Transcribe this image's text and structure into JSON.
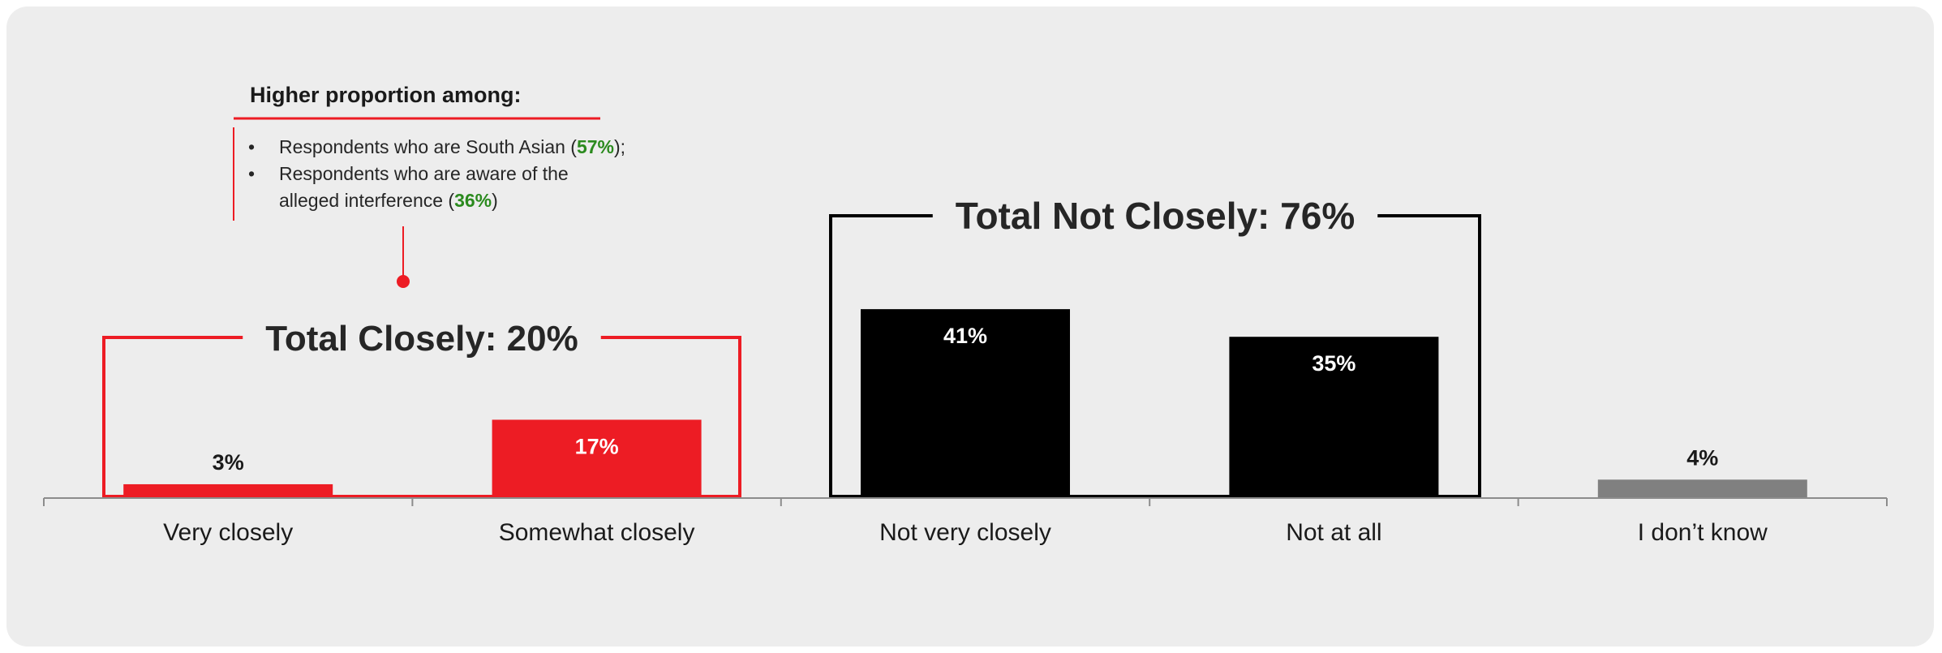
{
  "chart_data": {
    "type": "bar",
    "categories": [
      "Very closely",
      "Somewhat closely",
      "Not very closely",
      "Not at all",
      "I don’t know"
    ],
    "values": [
      3,
      17,
      41,
      35,
      4
    ],
    "value_labels": [
      "3%",
      "17%",
      "41%",
      "35%",
      "4%"
    ],
    "unit": "%",
    "ylim": [
      0,
      50
    ],
    "grid": false,
    "legend": "none",
    "bar_colors": [
      "#ed1c24",
      "#ed1c24",
      "#000000",
      "#000000",
      "#808080"
    ],
    "groups": [
      {
        "label": "Total Closely: 20%",
        "categories": [
          "Very closely",
          "Somewhat closely"
        ],
        "color": "#ed1c24"
      },
      {
        "label": "Total Not Closely: 76%",
        "categories": [
          "Not very closely",
          "Not at all"
        ],
        "color": "#000000"
      }
    ]
  },
  "callout": {
    "title": "Higher proportion among:",
    "items": [
      {
        "pre": "Respondents who are South Asian (",
        "value": "57%",
        "post": ");"
      },
      {
        "pre": "Respondents who are aware of the alleged interference (",
        "value": "36%",
        "post": ")"
      }
    ],
    "color": "#ed1c24",
    "highlight_color": "#2b8a1e"
  }
}
